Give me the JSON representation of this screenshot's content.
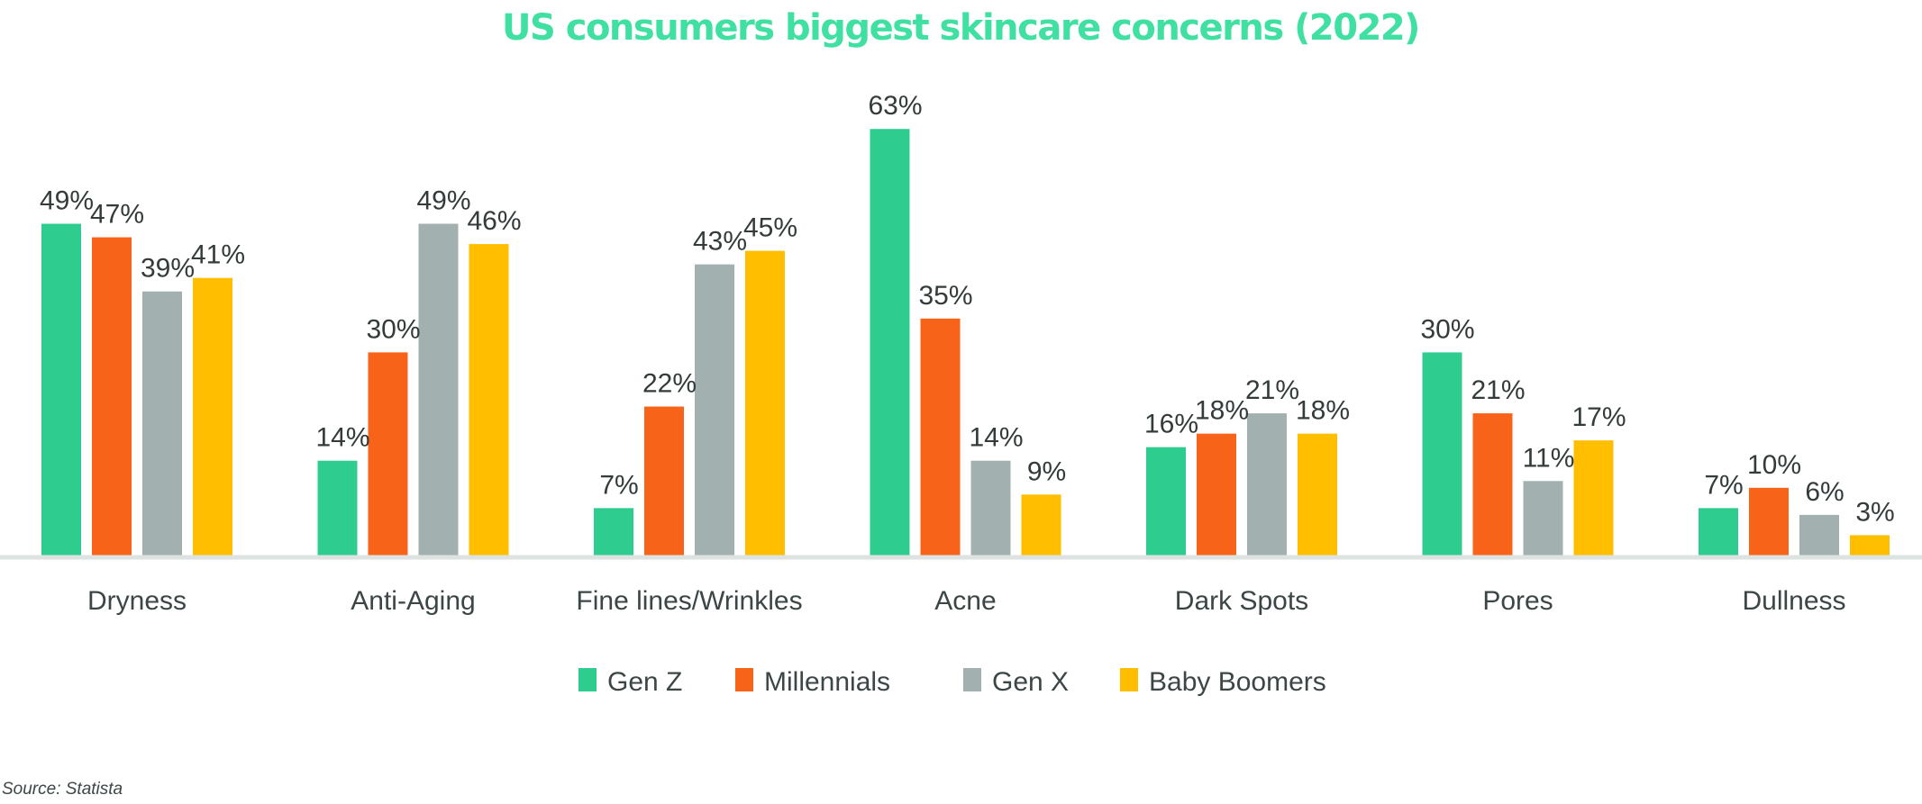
{
  "chart_data": {
    "type": "bar",
    "title": "US consumers biggest skincare concerns (2022)",
    "xlabel": "",
    "ylabel": "",
    "ylim": [
      0,
      63
    ],
    "grid": false,
    "legend_position": "bottom",
    "categories": [
      "Dryness",
      "Anti-Aging",
      "Fine lines/Wrinkles",
      "Acne",
      "Dark Spots",
      "Pores",
      "Dullness"
    ],
    "series": [
      {
        "name": "Gen Z",
        "color": "#2ecc8f",
        "values": [
          49,
          14,
          7,
          63,
          16,
          30,
          7
        ]
      },
      {
        "name": "Millennials",
        "color": "#f76318",
        "values": [
          47,
          30,
          22,
          35,
          18,
          21,
          10
        ]
      },
      {
        "name": "Gen X",
        "color": "#a2b1b0",
        "values": [
          39,
          49,
          43,
          14,
          21,
          11,
          6
        ]
      },
      {
        "name": "Baby Boomers",
        "color": "#ffbe00",
        "values": [
          41,
          46,
          45,
          9,
          18,
          17,
          3
        ]
      }
    ],
    "value_suffix": "%",
    "source": "Source: Statista"
  }
}
